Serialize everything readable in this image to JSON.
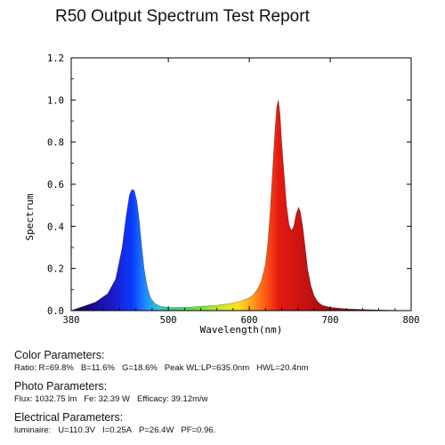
{
  "report_title": "R50 Output Spectrum Test Report",
  "chart_data": {
    "type": "area",
    "xlabel": "Wavelength(nm)",
    "ylabel": "Spectrum",
    "xlim": [
      380,
      800
    ],
    "ylim": [
      0,
      1.2
    ],
    "x_ticks": [
      380,
      500,
      600,
      700,
      800
    ],
    "y_ticks": [
      "0.0",
      "0.2",
      "0.4",
      "0.6",
      "0.8",
      "1.0",
      "1.2"
    ],
    "grid": false,
    "x": [
      380,
      395,
      410,
      425,
      435,
      443,
      448,
      452,
      455,
      458,
      461,
      464,
      467,
      470,
      474,
      478,
      483,
      490,
      500,
      510,
      520,
      530,
      540,
      550,
      560,
      570,
      580,
      590,
      600,
      605,
      610,
      615,
      620,
      623,
      626,
      629,
      632,
      634,
      636,
      638,
      640,
      643,
      646,
      649,
      652,
      655,
      658,
      661,
      663,
      666,
      669,
      672,
      676,
      680,
      685,
      690,
      700,
      720,
      750,
      800
    ],
    "values": [
      0.0,
      0.02,
      0.04,
      0.08,
      0.15,
      0.3,
      0.45,
      0.55,
      0.575,
      0.57,
      0.52,
      0.43,
      0.31,
      0.2,
      0.11,
      0.06,
      0.035,
      0.02,
      0.015,
      0.014,
      0.015,
      0.017,
      0.02,
      0.022,
      0.025,
      0.03,
      0.036,
      0.045,
      0.06,
      0.075,
      0.1,
      0.14,
      0.22,
      0.32,
      0.48,
      0.68,
      0.87,
      0.97,
      1.0,
      0.93,
      0.8,
      0.65,
      0.5,
      0.41,
      0.38,
      0.4,
      0.46,
      0.49,
      0.47,
      0.4,
      0.3,
      0.2,
      0.12,
      0.07,
      0.04,
      0.025,
      0.015,
      0.008,
      0.004,
      0.0
    ]
  },
  "parameters": [
    {
      "title": "Color Parameters:",
      "items": [
        "Ratio: R=69.8%",
        "B=11.6%",
        "G=18.6%",
        "Peak WL:LP=635.0nm",
        "HWL=20.4nm"
      ]
    },
    {
      "title": "Photo Parameters:",
      "items": [
        "Flux: 1032.75 lm",
        "Fe: 32.39  W",
        "Efficacy: 39.12m/w"
      ]
    },
    {
      "title": "Electrical Parameters:",
      "items": [
        "luminaire:",
        "U=110.3V",
        "I=0.25A",
        "P=26.4W",
        "PF=0.96."
      ]
    }
  ]
}
